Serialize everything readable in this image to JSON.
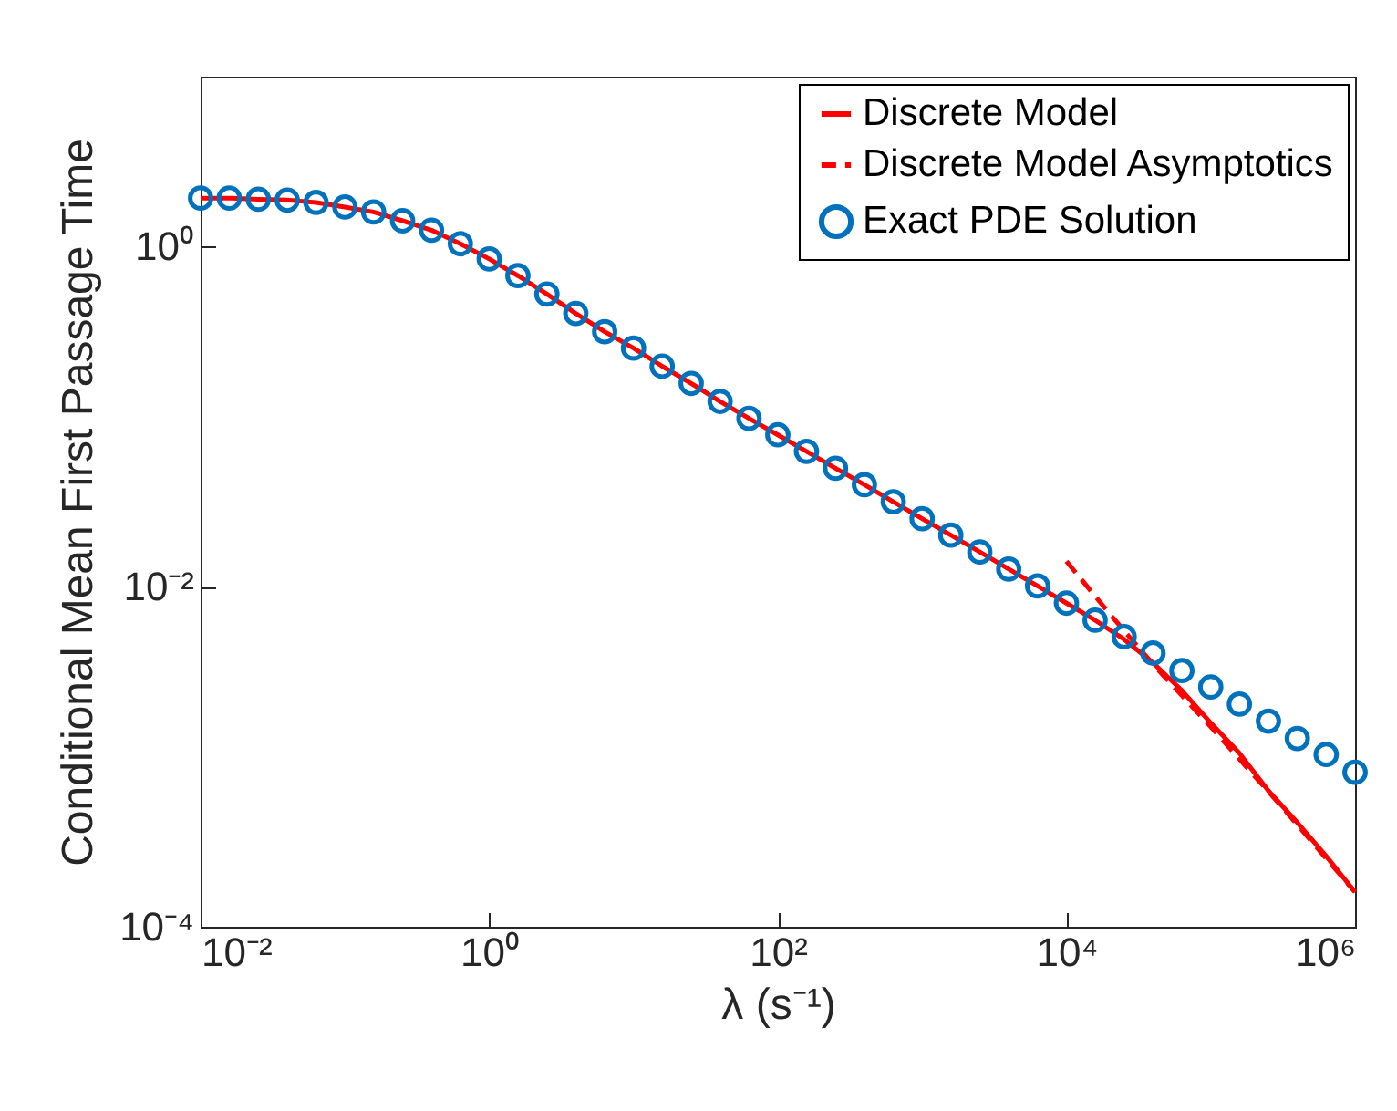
{
  "chart_data": {
    "type": "line",
    "xlabel": "λ (s⁻¹)",
    "ylabel": "Conditional Mean First Passage Time",
    "log": "xy",
    "grid": false,
    "legend": "top right",
    "xlim": [
      0.01,
      1000000
    ],
    "ylim": [
      0.0001,
      10
    ],
    "xticks": [
      {
        "value": 0.01,
        "label": "10⁻²"
      },
      {
        "value": 1,
        "label": "10⁰"
      },
      {
        "value": 100,
        "label": "10²"
      },
      {
        "value": 10000,
        "label": "10⁴"
      },
      {
        "value": 1000000,
        "label": "10⁶"
      }
    ],
    "yticks": [
      {
        "value": 0.0001,
        "label": "10⁻⁴"
      },
      {
        "value": 0.01,
        "label": "10⁻²"
      },
      {
        "value": 1,
        "label": "10⁰"
      }
    ],
    "series": [
      {
        "name": "Discrete Model",
        "color": "#ff0000",
        "line_style": "solid",
        "marker": "none",
        "x": [
          0.01,
          0.0158,
          0.0251,
          0.0398,
          0.0631,
          0.1,
          0.158,
          0.251,
          0.398,
          0.631,
          1,
          1.58,
          2.51,
          3.98,
          6.31,
          10,
          15.8,
          25.1,
          39.8,
          63.1,
          100,
          158,
          251,
          398,
          631,
          1000,
          1580,
          2510,
          3980,
          6310,
          10000,
          15800,
          25100,
          39800,
          63100,
          100000,
          158000,
          251000,
          398000,
          631000,
          1000000
        ],
        "values": [
          1.93,
          1.93,
          1.9,
          1.88,
          1.82,
          1.71,
          1.6,
          1.42,
          1.25,
          1.04,
          0.847,
          0.675,
          0.526,
          0.405,
          0.316,
          0.253,
          0.198,
          0.157,
          0.123,
          0.0977,
          0.0782,
          0.0625,
          0.0497,
          0.0398,
          0.0316,
          0.0251,
          0.0201,
          0.016,
          0.0127,
          0.0101,
          0.008,
          0.00635,
          0.0049,
          0.00357,
          0.00245,
          0.00158,
          0.00105,
          0.00063,
          0.00041,
          0.00026,
          0.00016
        ]
      },
      {
        "name": "Discrete Model Asymptotics",
        "type": "line",
        "color": "#ff0000",
        "line_style": "dashed",
        "marker": "none",
        "x": [
          10000,
          20000,
          39800,
          100000,
          316000,
          1000000
        ],
        "values": [
          0.0141,
          0.0069,
          0.0035,
          0.0015,
          0.0005,
          0.00016
        ]
      },
      {
        "name": "Exact PDE Solution",
        "type": "scatter",
        "color": "#0072bd",
        "marker": "circle",
        "x": [
          0.01,
          0.0158,
          0.0251,
          0.0398,
          0.0631,
          0.1,
          0.158,
          0.251,
          0.398,
          0.631,
          1,
          1.58,
          2.51,
          3.98,
          6.31,
          10,
          15.8,
          25.1,
          39.8,
          63.1,
          100,
          158,
          251,
          398,
          631,
          1000,
          1580,
          2510,
          3980,
          6310,
          10000,
          15800,
          25100,
          39800,
          63100,
          100000,
          158000,
          251000,
          398000,
          631000,
          1000000
        ],
        "values": [
          1.93,
          1.93,
          1.9,
          1.88,
          1.82,
          1.71,
          1.6,
          1.42,
          1.25,
          1.04,
          0.847,
          0.675,
          0.526,
          0.405,
          0.316,
          0.253,
          0.198,
          0.157,
          0.123,
          0.0977,
          0.0782,
          0.0625,
          0.0497,
          0.0398,
          0.0316,
          0.0251,
          0.0201,
          0.016,
          0.0127,
          0.0101,
          0.008,
          0.00635,
          0.00508,
          0.00407,
          0.00321,
          0.00257,
          0.00204,
          0.00162,
          0.00128,
          0.00103,
          0.00081
        ]
      }
    ]
  }
}
